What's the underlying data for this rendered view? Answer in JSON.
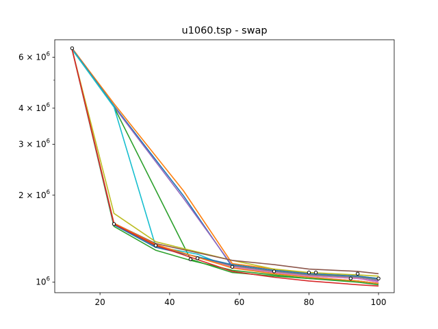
{
  "chart_data": {
    "type": "line",
    "title": "u1060.tsp - swap",
    "xlabel": "",
    "ylabel": "",
    "yscale": "log",
    "xlim": [
      7,
      104.5
    ],
    "ylim": [
      920000,
      6900000
    ],
    "x_ticks": [
      20,
      40,
      60,
      80,
      100
    ],
    "x_tick_labels": [
      "20",
      "40",
      "60",
      "80",
      "100"
    ],
    "y_ticks": [
      1000000,
      2000000,
      3000000,
      4000000,
      6000000
    ],
    "y_tick_labels": [
      {
        "mantissa": "10",
        "exp": "6"
      },
      {
        "mantissa": "2 × 10",
        "exp": "6"
      },
      {
        "mantissa": "3 × 10",
        "exp": "6"
      },
      {
        "mantissa": "4 × 10",
        "exp": "6"
      },
      {
        "mantissa": "6 × 10",
        "exp": "6"
      }
    ],
    "series": [
      {
        "color": "#ff7f0e",
        "x": [
          12,
          24,
          44,
          58,
          70,
          80,
          94,
          100
        ],
        "y": [
          6450000,
          4150000,
          2070000,
          1160000,
          1110000,
          1070000,
          1050000,
          1030000
        ]
      },
      {
        "color": "#1f77b4",
        "x": [
          12,
          24,
          44,
          58,
          70,
          80,
          94,
          100
        ],
        "y": [
          6420000,
          4080000,
          1990000,
          1130000,
          1090000,
          1060000,
          1040000,
          1020000
        ]
      },
      {
        "color": "#9467bd",
        "x": [
          12,
          24,
          44,
          58,
          70,
          80,
          94,
          100
        ],
        "y": [
          6400000,
          4050000,
          1950000,
          1140000,
          1080000,
          1050000,
          1030000,
          1010000
        ]
      },
      {
        "color": "#2ca02c",
        "x": [
          12,
          24,
          46,
          58,
          70,
          80,
          94,
          100
        ],
        "y": [
          6380000,
          4040000,
          1200000,
          1080000,
          1050000,
          1030000,
          1010000,
          990000
        ]
      },
      {
        "color": "#2ca02c",
        "x": [
          12,
          24,
          36,
          46,
          58,
          70,
          80,
          94,
          100
        ],
        "y": [
          6380000,
          1560000,
          1290000,
          1190000,
          1100000,
          1060000,
          1030000,
          1000000,
          980000
        ]
      },
      {
        "color": "#17becf",
        "x": [
          12,
          24,
          36,
          48,
          58,
          70,
          80,
          94,
          100
        ],
        "y": [
          6380000,
          4040000,
          1330000,
          1250000,
          1120000,
          1080000,
          1040000,
          1010000,
          990000
        ]
      },
      {
        "color": "#bcbd22",
        "x": [
          12,
          24,
          36,
          58,
          70,
          80,
          94,
          100
        ],
        "y": [
          6380000,
          1730000,
          1380000,
          1190000,
          1110000,
          1080000,
          1060000,
          1050000
        ]
      },
      {
        "color": "#8c564b",
        "x": [
          12,
          24,
          36,
          58,
          70,
          80,
          94,
          100
        ],
        "y": [
          6380000,
          1600000,
          1360000,
          1190000,
          1150000,
          1110000,
          1090000,
          1070000
        ]
      },
      {
        "color": "#e377c2",
        "x": [
          12,
          24,
          36,
          58,
          70,
          80,
          94,
          100
        ],
        "y": [
          6380000,
          1590000,
          1340000,
          1130000,
          1080000,
          1050000,
          1030000,
          1000000
        ]
      },
      {
        "color": "#7f7f7f",
        "x": [
          12,
          24,
          36,
          58,
          70,
          80,
          94,
          100
        ],
        "y": [
          6380000,
          1580000,
          1330000,
          1140000,
          1090000,
          1060000,
          1040000,
          1020000
        ]
      },
      {
        "color": "#1f77b4",
        "x": [
          12,
          24,
          36,
          58,
          70,
          80,
          94,
          100
        ],
        "y": [
          6380000,
          1580000,
          1320000,
          1150000,
          1100000,
          1070000,
          1050000,
          1030000
        ]
      },
      {
        "color": "#ff7f0e",
        "x": [
          12,
          24,
          36,
          58,
          70,
          80,
          94,
          100
        ],
        "y": [
          6380000,
          1600000,
          1350000,
          1120000,
          1070000,
          1040000,
          1010000,
          990000
        ]
      },
      {
        "color": "#d62728",
        "x": [
          12,
          24,
          36,
          58,
          70,
          80,
          94,
          100
        ],
        "y": [
          6380000,
          1590000,
          1340000,
          1090000,
          1040000,
          1010000,
          980000,
          970000
        ]
      }
    ],
    "markers": {
      "x": [
        12,
        24,
        36,
        46,
        48,
        58,
        70,
        80,
        82,
        92,
        94,
        100
      ],
      "y": [
        6450000,
        1590000,
        1340000,
        1200000,
        1210000,
        1130000,
        1090000,
        1080000,
        1080000,
        1030000,
        1070000,
        1030000
      ]
    },
    "grid": false,
    "legend": "none"
  }
}
